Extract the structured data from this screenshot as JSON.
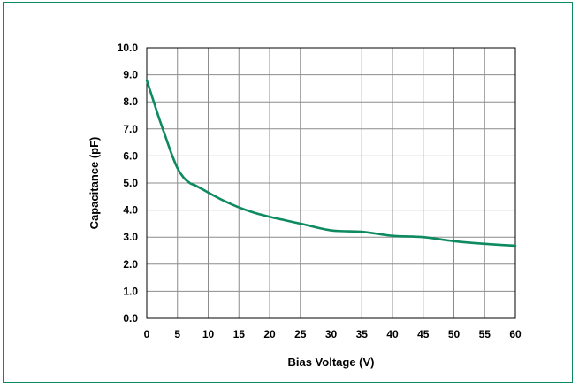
{
  "chart_data": {
    "type": "line",
    "title": "",
    "xlabel": "Bias Voltage (V)",
    "ylabel": "Capacitance (pF)",
    "xlim": [
      0,
      60
    ],
    "ylim": [
      0,
      10
    ],
    "x_ticks": [
      "0",
      "5",
      "10",
      "15",
      "20",
      "25",
      "30",
      "35",
      "40",
      "45",
      "50",
      "55",
      "60"
    ],
    "y_ticks": [
      "0.0",
      "1.0",
      "2.0",
      "3.0",
      "4.0",
      "5.0",
      "6.0",
      "7.0",
      "8.0",
      "9.0",
      "10.0"
    ],
    "grid": true,
    "legend": "none",
    "series": [
      {
        "color": "#0e8a5f",
        "x": [
          0,
          1,
          2,
          3,
          4,
          5,
          6,
          7,
          8,
          10,
          12.5,
          15,
          17.5,
          20,
          25,
          30,
          35,
          40,
          45,
          50,
          55,
          60
        ],
        "y": [
          8.8,
          8.1,
          7.4,
          6.75,
          6.1,
          5.55,
          5.2,
          5.0,
          4.9,
          4.65,
          4.35,
          4.1,
          3.9,
          3.75,
          3.5,
          3.25,
          3.2,
          3.05,
          3.0,
          2.85,
          2.75,
          2.68
        ]
      }
    ]
  }
}
